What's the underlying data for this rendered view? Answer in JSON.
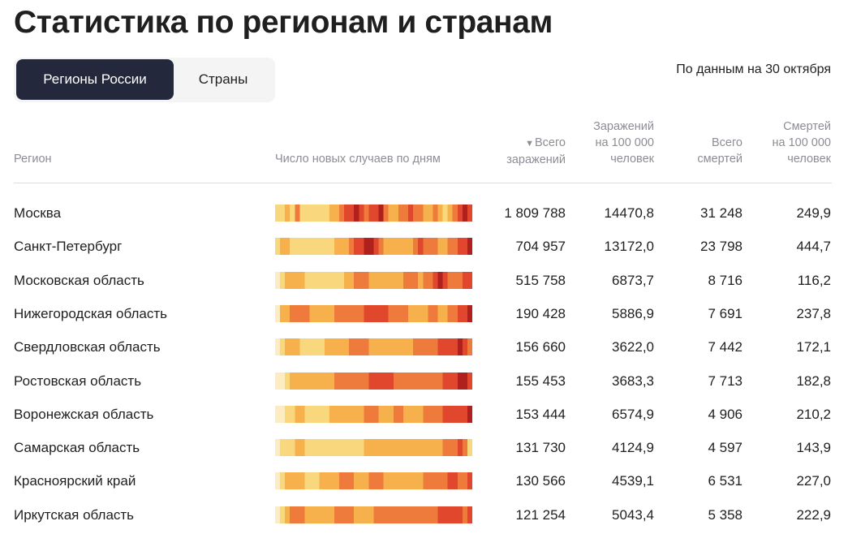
{
  "title": "Статистика по регионам и странам",
  "tabs": [
    {
      "label": "Регионы России",
      "active": true
    },
    {
      "label": "Страны",
      "active": false
    }
  ],
  "as_of": "По данным на 30 октября",
  "columns": {
    "region": "Регион",
    "daily": "Число новых случаев по дням",
    "total_cases": {
      "arrow": "▼",
      "line1": "Всего",
      "line2": "заражений"
    },
    "cases_per_100k": {
      "line1": "Заражений",
      "line2": "на 100 000",
      "line3": "человек"
    },
    "total_deaths": {
      "line1": "Всего",
      "line2": "смертей"
    },
    "deaths_per_100k": {
      "line1": "Смертей",
      "line2": "на 100 000",
      "line3": "человек"
    }
  },
  "heat_colors": [
    "#fdebc1",
    "#f9d77d",
    "#f6b04c",
    "#ee7a3b",
    "#e0472c",
    "#b0201d"
  ],
  "rows": [
    {
      "region": "Москва",
      "total_cases": "1 809 788",
      "cases_per_100k": "14470,8",
      "total_deaths": "31 248",
      "deaths_per_100k": "249,9",
      "heat": [
        1,
        1,
        2,
        1,
        3,
        1,
        1,
        1,
        1,
        1,
        1,
        2,
        2,
        3,
        4,
        4,
        5,
        4,
        3,
        4,
        4,
        5,
        3,
        2,
        2,
        3,
        3,
        4,
        3,
        3,
        2,
        2,
        3,
        2,
        1,
        2,
        3,
        4,
        5,
        4
      ]
    },
    {
      "region": "Санкт-Петербург",
      "total_cases": "704 957",
      "cases_per_100k": "13172,0",
      "total_deaths": "23 798",
      "deaths_per_100k": "444,7",
      "heat": [
        1,
        2,
        2,
        1,
        1,
        1,
        1,
        1,
        1,
        1,
        1,
        1,
        2,
        2,
        2,
        3,
        4,
        4,
        5,
        5,
        4,
        3,
        2,
        2,
        2,
        2,
        2,
        2,
        3,
        4,
        3,
        3,
        3,
        2,
        2,
        3,
        3,
        4,
        4,
        5
      ]
    },
    {
      "region": "Московская область",
      "total_cases": "515 758",
      "cases_per_100k": "6873,7",
      "total_deaths": "8 716",
      "deaths_per_100k": "116,2",
      "heat": [
        0,
        1,
        2,
        2,
        2,
        2,
        1,
        1,
        1,
        1,
        1,
        1,
        1,
        1,
        2,
        2,
        3,
        3,
        3,
        2,
        2,
        2,
        2,
        2,
        2,
        2,
        3,
        3,
        3,
        2,
        3,
        3,
        4,
        5,
        4,
        3,
        3,
        3,
        4,
        4
      ]
    },
    {
      "region": "Нижегородская область",
      "total_cases": "190 428",
      "cases_per_100k": "5886,9",
      "total_deaths": "7 691",
      "deaths_per_100k": "237,8",
      "heat": [
        0,
        2,
        2,
        3,
        3,
        3,
        3,
        2,
        2,
        2,
        2,
        2,
        3,
        3,
        3,
        3,
        3,
        3,
        4,
        4,
        4,
        4,
        4,
        3,
        3,
        3,
        3,
        2,
        2,
        2,
        2,
        3,
        3,
        2,
        2,
        3,
        3,
        4,
        4,
        5
      ]
    },
    {
      "region": "Свердловская область",
      "total_cases": "156 660",
      "cases_per_100k": "3622,0",
      "total_deaths": "7 442",
      "deaths_per_100k": "172,1",
      "heat": [
        0,
        1,
        2,
        2,
        2,
        1,
        1,
        1,
        1,
        1,
        2,
        2,
        2,
        2,
        2,
        3,
        3,
        3,
        3,
        2,
        2,
        2,
        2,
        2,
        2,
        2,
        2,
        2,
        3,
        3,
        3,
        3,
        3,
        4,
        4,
        4,
        4,
        5,
        4,
        3
      ]
    },
    {
      "region": "Ростовская область",
      "total_cases": "155 453",
      "cases_per_100k": "3683,3",
      "total_deaths": "7 713",
      "deaths_per_100k": "182,8",
      "heat": [
        0,
        0,
        1,
        2,
        2,
        2,
        2,
        2,
        2,
        2,
        2,
        2,
        3,
        3,
        3,
        3,
        3,
        3,
        3,
        4,
        4,
        4,
        4,
        4,
        3,
        3,
        3,
        3,
        3,
        3,
        3,
        3,
        3,
        3,
        4,
        4,
        4,
        5,
        5,
        4
      ]
    },
    {
      "region": "Воронежская область",
      "total_cases": "153 444",
      "cases_per_100k": "6574,9",
      "total_deaths": "4 906",
      "deaths_per_100k": "210,2",
      "heat": [
        0,
        0,
        1,
        1,
        2,
        2,
        1,
        1,
        1,
        1,
        1,
        2,
        2,
        2,
        2,
        2,
        2,
        2,
        3,
        3,
        3,
        2,
        2,
        2,
        3,
        3,
        2,
        2,
        2,
        2,
        3,
        3,
        3,
        3,
        4,
        4,
        4,
        4,
        4,
        5
      ]
    },
    {
      "region": "Самарская область",
      "total_cases": "131 730",
      "cases_per_100k": "4124,9",
      "total_deaths": "4 597",
      "deaths_per_100k": "143,9",
      "heat": [
        0,
        1,
        1,
        1,
        2,
        2,
        1,
        1,
        1,
        1,
        1,
        1,
        1,
        1,
        1,
        1,
        1,
        1,
        2,
        2,
        2,
        2,
        2,
        2,
        2,
        2,
        2,
        2,
        2,
        2,
        2,
        2,
        2,
        2,
        3,
        3,
        3,
        4,
        3,
        1
      ]
    },
    {
      "region": "Красноярский край",
      "total_cases": "130 566",
      "cases_per_100k": "4539,1",
      "total_deaths": "6 531",
      "deaths_per_100k": "227,0",
      "heat": [
        0,
        1,
        2,
        2,
        2,
        2,
        1,
        1,
        1,
        2,
        2,
        2,
        2,
        3,
        3,
        3,
        2,
        2,
        2,
        3,
        3,
        3,
        2,
        2,
        2,
        2,
        2,
        2,
        2,
        2,
        3,
        3,
        3,
        3,
        3,
        4,
        4,
        3,
        3,
        4
      ]
    },
    {
      "region": "Иркутская область",
      "total_cases": "121 254",
      "cases_per_100k": "5043,4",
      "total_deaths": "5 358",
      "deaths_per_100k": "222,9",
      "heat": [
        0,
        1,
        2,
        3,
        3,
        3,
        2,
        2,
        2,
        2,
        2,
        2,
        3,
        3,
        3,
        3,
        2,
        2,
        2,
        2,
        3,
        3,
        3,
        3,
        3,
        3,
        3,
        3,
        3,
        3,
        3,
        3,
        3,
        4,
        4,
        4,
        4,
        4,
        3,
        4
      ]
    }
  ]
}
